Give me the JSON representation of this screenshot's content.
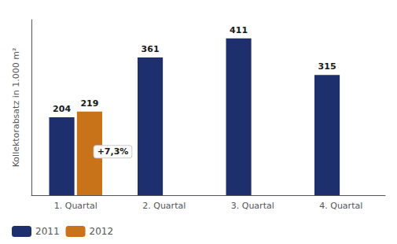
{
  "chart_data": {
    "type": "bar",
    "categories": [
      "1. Quartal",
      "2. Quartal",
      "3. Quartal",
      "4. Quartal"
    ],
    "series": [
      {
        "name": "2011",
        "color": "#1e2f6e",
        "values": [
          204,
          361,
          411,
          315
        ]
      },
      {
        "name": "2012",
        "color": "#c8721a",
        "values": [
          219,
          null,
          null,
          null
        ]
      }
    ],
    "ylabel": "Kollektorabsatz in 1.000 m²",
    "annotations": [
      "+7,3%"
    ],
    "ylim": [
      0,
      460
    ],
    "data_labels": true,
    "tick_labels": "x",
    "grid": false,
    "legend": "lower left"
  }
}
